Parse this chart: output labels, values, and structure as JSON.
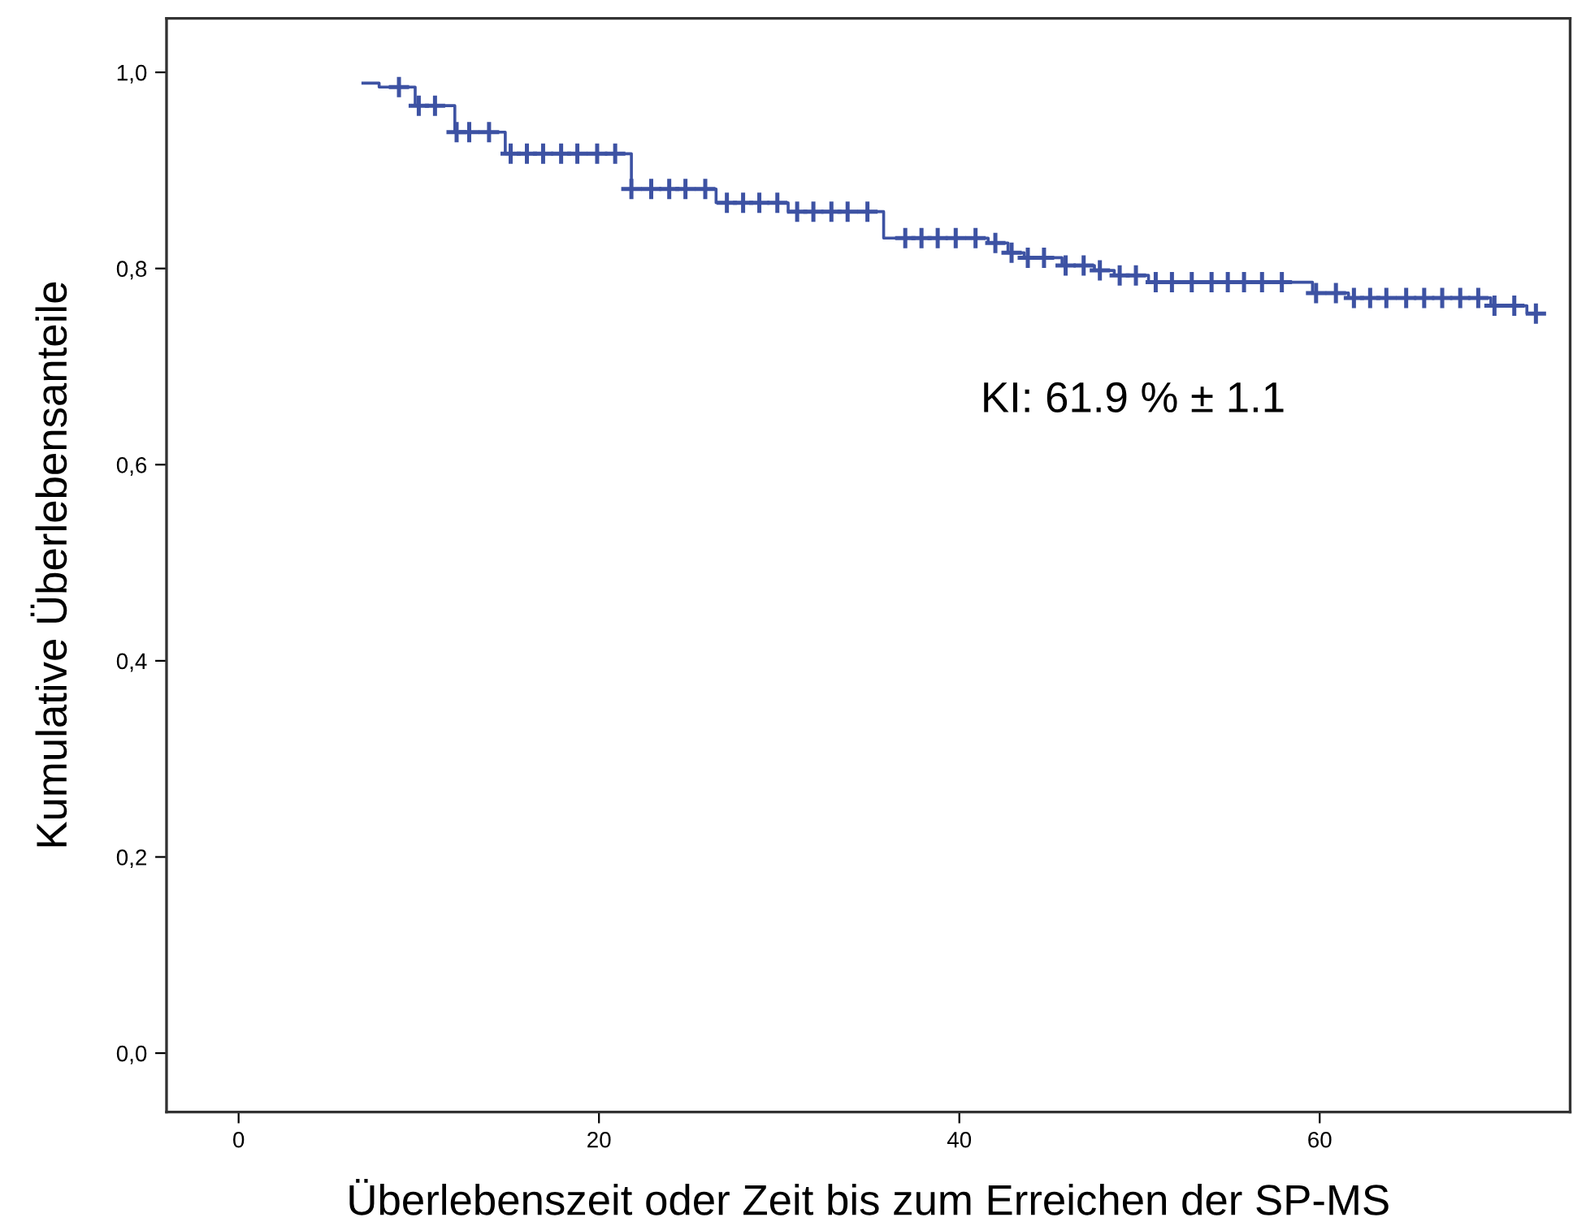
{
  "chart_data": {
    "type": "step",
    "xlabel": "Überlebenszeit oder Zeit bis zum Erreichen der SP-MS",
    "ylabel": "Kumulative Überlebensanteile",
    "annotations": [
      "KI: 61.9 % ± 1.1"
    ],
    "xlim": [
      -4,
      73.9
    ],
    "ylim": [
      -0.06,
      1.055
    ],
    "xticks": [
      0,
      20,
      40,
      60
    ],
    "yticks": [
      {
        "value": 0.0,
        "label": "0,0"
      },
      {
        "value": 0.2,
        "label": "0,2"
      },
      {
        "value": 0.4,
        "label": "0,4"
      },
      {
        "value": 0.6,
        "label": "0,6"
      },
      {
        "value": 0.8,
        "label": "0,8"
      },
      {
        "value": 1.0,
        "label": "1,0"
      }
    ],
    "grid": false,
    "legend": false,
    "series": [
      {
        "color": "#3d52a3",
        "marker": "none",
        "x": [
          6.9,
          7.8,
          9.8,
          12.0,
          14.8,
          21.8,
          26.5,
          30.5,
          35.8,
          41.6,
          42.7,
          43.6,
          45.7,
          47.5,
          48.6,
          50.5,
          59.6,
          61.6,
          69.5,
          71.5,
          72.2
        ],
        "values": [
          0.989,
          0.985,
          0.966,
          0.939,
          0.917,
          0.881,
          0.867,
          0.858,
          0.831,
          0.826,
          0.816,
          0.811,
          0.803,
          0.798,
          0.793,
          0.786,
          0.775,
          0.77,
          0.762,
          0.754,
          0.754
        ]
      },
      {
        "type": "scatter",
        "color": "#3d52a3",
        "marker": "cross",
        "x": [
          8.9,
          10.0,
          10.9,
          12.1,
          12.8,
          13.9,
          15.1,
          16.0,
          16.9,
          17.9,
          18.8,
          19.9,
          20.9,
          21.8,
          22.9,
          23.9,
          24.8,
          25.9,
          27.1,
          28.0,
          28.9,
          29.9,
          31.0,
          31.9,
          32.9,
          33.8,
          34.9,
          37.0,
          37.9,
          38.8,
          39.8,
          40.9,
          42.0,
          42.9,
          43.8,
          44.7,
          45.9,
          46.9,
          47.8,
          48.9,
          49.8,
          50.9,
          51.8,
          52.9,
          54.0,
          54.9,
          55.8,
          56.8,
          57.9,
          59.8,
          60.9,
          61.9,
          62.8,
          63.7,
          64.8,
          65.8,
          66.8,
          67.8,
          68.8,
          69.7,
          70.8,
          72.0
        ],
        "values": [
          0.985,
          0.966,
          0.966,
          0.939,
          0.939,
          0.939,
          0.917,
          0.917,
          0.917,
          0.917,
          0.917,
          0.917,
          0.917,
          0.881,
          0.881,
          0.881,
          0.881,
          0.881,
          0.867,
          0.867,
          0.867,
          0.867,
          0.858,
          0.858,
          0.858,
          0.858,
          0.858,
          0.831,
          0.831,
          0.831,
          0.831,
          0.831,
          0.826,
          0.816,
          0.811,
          0.811,
          0.803,
          0.803,
          0.798,
          0.793,
          0.793,
          0.786,
          0.786,
          0.786,
          0.786,
          0.786,
          0.786,
          0.786,
          0.786,
          0.775,
          0.775,
          0.77,
          0.77,
          0.77,
          0.77,
          0.77,
          0.77,
          0.77,
          0.77,
          0.762,
          0.762,
          0.754
        ]
      }
    ]
  }
}
